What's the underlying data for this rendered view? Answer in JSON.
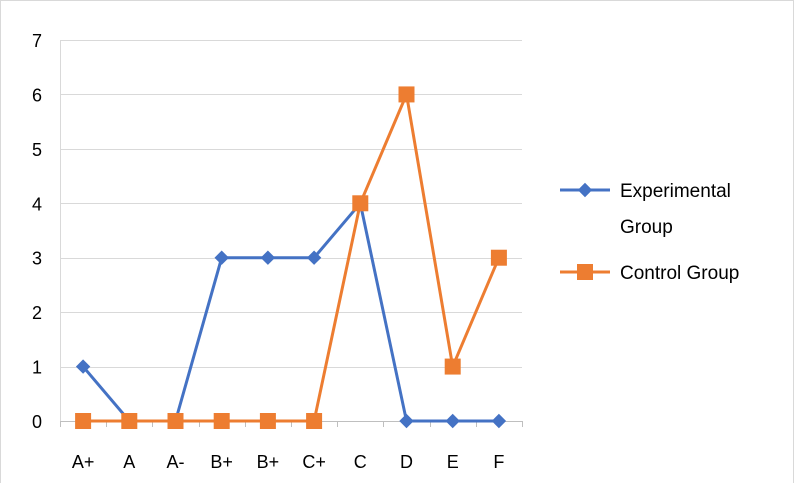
{
  "chart_data": {
    "type": "line",
    "title": "",
    "xlabel": "",
    "ylabel": "",
    "categories": [
      "A+",
      "A",
      "A-",
      "B+",
      "B+",
      "C+",
      "C",
      "D",
      "E",
      "F"
    ],
    "ylim": [
      0,
      7
    ],
    "yticks": [
      "0",
      "1",
      "2",
      "3",
      "4",
      "5",
      "6",
      "7"
    ],
    "grid": true,
    "legend_position": "right",
    "series": [
      {
        "name_lines": [
          "Experimental",
          "Group"
        ],
        "values": [
          1,
          0,
          0,
          3,
          3,
          3,
          4,
          0,
          0,
          0
        ],
        "color": "#4472C4",
        "marker": "diamond"
      },
      {
        "name_lines": [
          "Control Group"
        ],
        "values": [
          0,
          0,
          0,
          0,
          0,
          0,
          4,
          6,
          1,
          3
        ],
        "color": "#ED7D31",
        "marker": "square"
      }
    ]
  }
}
